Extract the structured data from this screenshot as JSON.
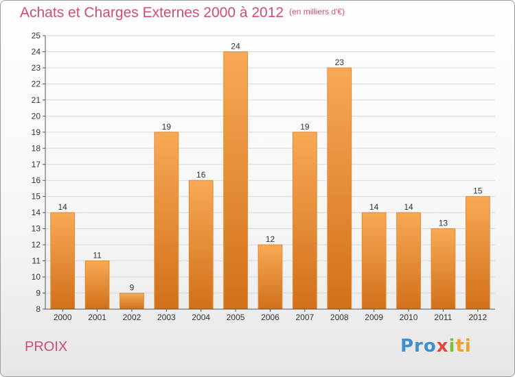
{
  "header": {
    "title": "Achats et Charges Externes 2000 à 2012",
    "subtitle": "(en milliers d'€)"
  },
  "footer": {
    "location": "PROIX",
    "logo_parts": [
      "Pro",
      "x",
      "i",
      "ti"
    ]
  },
  "colors": {
    "bar_top": "#f8a954",
    "bar_bottom": "#d2701a",
    "accent": "#d34a76"
  },
  "chart_data": {
    "type": "bar",
    "title": "Achats et Charges Externes 2000 à 2012",
    "subtitle": "(en milliers d'€)",
    "categories": [
      "2000",
      "2001",
      "2002",
      "2003",
      "2004",
      "2005",
      "2006",
      "2007",
      "2008",
      "2009",
      "2010",
      "2011",
      "2012"
    ],
    "values": [
      14,
      11,
      9,
      19,
      16,
      24,
      12,
      19,
      23,
      14,
      14,
      13,
      15
    ],
    "ylim": [
      8,
      25
    ],
    "yticks": [
      8,
      9,
      10,
      11,
      12,
      13,
      14,
      15,
      16,
      17,
      18,
      19,
      20,
      21,
      22,
      23,
      24,
      25
    ],
    "xlabel": "",
    "ylabel": "",
    "grid": true,
    "legend": "none"
  }
}
